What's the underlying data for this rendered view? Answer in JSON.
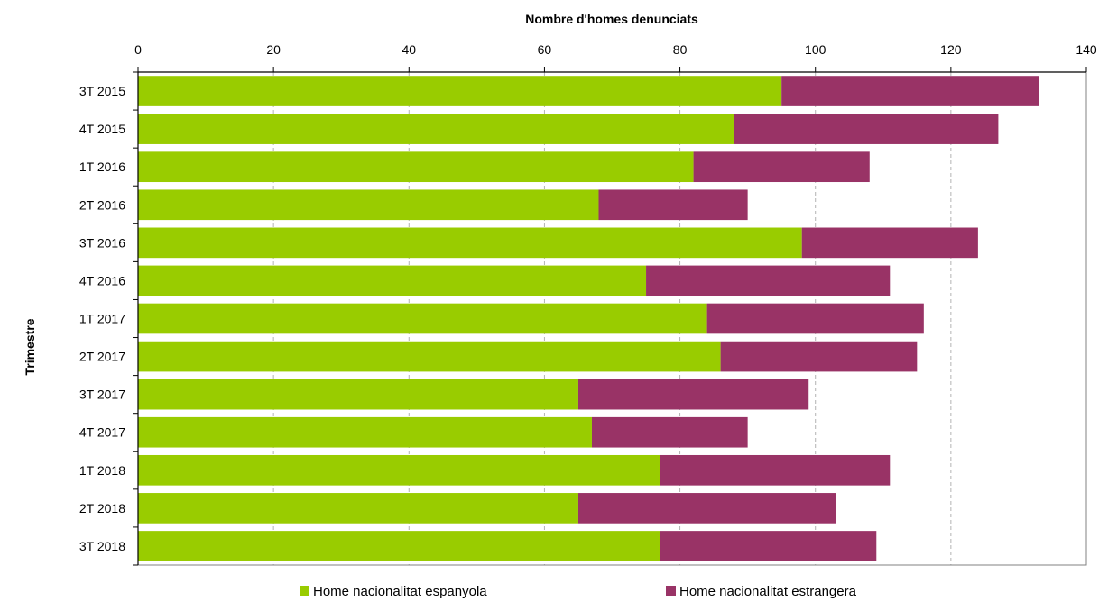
{
  "chart_data": {
    "type": "bar",
    "orientation": "horizontal",
    "stacked": true,
    "xlabel": "Nombre d'homes denunciats",
    "ylabel": "Trimestre",
    "xlim": [
      0,
      140
    ],
    "x_ticks": [
      0,
      20,
      40,
      60,
      80,
      100,
      120,
      140
    ],
    "x_axis_position": "top",
    "grid": "vertical dashed",
    "legend_position": "bottom",
    "categories": [
      "3T 2015",
      "4T 2015",
      "1T 2016",
      "2T 2016",
      "3T 2016",
      "4T 2016",
      "1T 2017",
      "2T 2017",
      "3T 2017",
      "4T 2017",
      "1T 2018",
      "2T 2018",
      "3T 2018"
    ],
    "series": [
      {
        "name": "Home nacionalitat espanyola",
        "color": "#99cc00",
        "values": [
          95,
          88,
          82,
          68,
          98,
          75,
          84,
          86,
          65,
          67,
          77,
          65,
          77
        ]
      },
      {
        "name": "Home nacionalitat estrangera",
        "color": "#993366",
        "values": [
          38,
          39,
          26,
          22,
          26,
          36,
          32,
          29,
          34,
          23,
          34,
          38,
          32
        ]
      }
    ]
  }
}
